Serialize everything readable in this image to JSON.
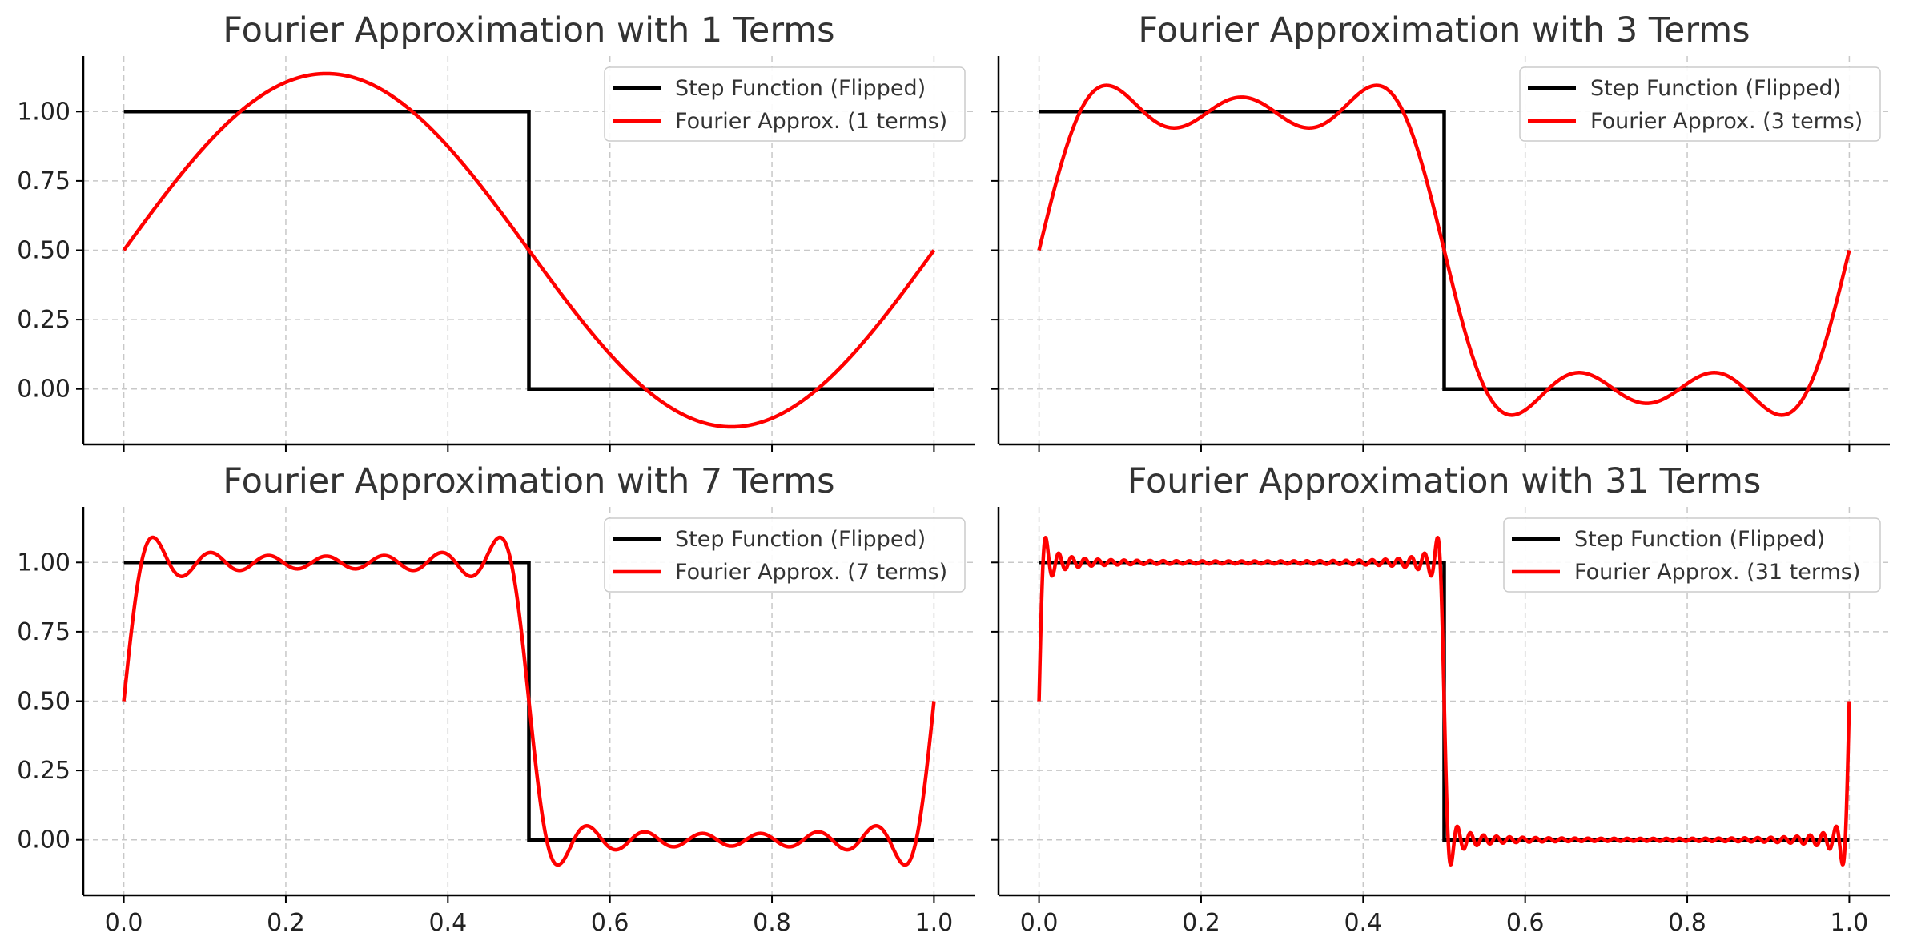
{
  "colors": {
    "step": "#000000",
    "fourier": "#ff0000",
    "grid": "#c8c8c8",
    "title": "#333333"
  },
  "chart_data": [
    {
      "type": "line",
      "title": "Fourier Approximation with 1 Terms",
      "terms": 1,
      "xlim": [
        -0.05,
        1.05
      ],
      "ylim": [
        -0.2,
        1.2
      ],
      "xticks": [
        0.0,
        0.2,
        0.4,
        0.6,
        0.8,
        1.0
      ],
      "xtick_labels": [],
      "yticks": [
        0.0,
        0.25,
        0.5,
        0.75,
        1.0
      ],
      "ytick_labels": [
        "0.00",
        "0.25",
        "0.50",
        "0.75",
        "1.00"
      ],
      "grid": true,
      "legend_position": "top-right",
      "series": [
        {
          "name": "Step Function (Flipped)",
          "color": "#000000",
          "x": [
            0.0,
            0.5,
            0.5,
            1.0
          ],
          "y": [
            1.0,
            1.0,
            0.0,
            0.0
          ]
        },
        {
          "name": "Fourier Approx. (1 terms)",
          "color": "#ff0000",
          "function": "0.5 + (2/pi) * sum_{k=1..N} sin(2*pi*(2k-1)*x)/(2k-1)",
          "x_range": [
            0.0,
            1.0
          ],
          "peak": 1.137,
          "trough": -0.137
        }
      ]
    },
    {
      "type": "line",
      "title": "Fourier Approximation with 3 Terms",
      "terms": 3,
      "xlim": [
        -0.05,
        1.05
      ],
      "ylim": [
        -0.2,
        1.2
      ],
      "xticks": [
        0.0,
        0.2,
        0.4,
        0.6,
        0.8,
        1.0
      ],
      "xtick_labels": [],
      "yticks": [
        0.0,
        0.25,
        0.5,
        0.75,
        1.0
      ],
      "ytick_labels": [],
      "grid": true,
      "legend_position": "top-right",
      "series": [
        {
          "name": "Step Function (Flipped)",
          "color": "#000000",
          "x": [
            0.0,
            0.5,
            0.5,
            1.0
          ],
          "y": [
            1.0,
            1.0,
            0.0,
            0.0
          ]
        },
        {
          "name": "Fourier Approx. (3 terms)",
          "color": "#ff0000",
          "function": "0.5 + (2/pi) * sum_{k=1..N} sin(2*pi*(2k-1)*x)/(2k-1)",
          "x_range": [
            0.0,
            1.0
          ],
          "peak": 1.1,
          "trough": -0.1
        }
      ]
    },
    {
      "type": "line",
      "title": "Fourier Approximation with 7 Terms",
      "terms": 7,
      "xlim": [
        -0.05,
        1.05
      ],
      "ylim": [
        -0.2,
        1.2
      ],
      "xticks": [
        0.0,
        0.2,
        0.4,
        0.6,
        0.8,
        1.0
      ],
      "xtick_labels": [
        "0.0",
        "0.2",
        "0.4",
        "0.6",
        "0.8",
        "1.0"
      ],
      "yticks": [
        0.0,
        0.25,
        0.5,
        0.75,
        1.0
      ],
      "ytick_labels": [
        "0.00",
        "0.25",
        "0.50",
        "0.75",
        "1.00"
      ],
      "grid": true,
      "legend_position": "top-right",
      "series": [
        {
          "name": "Step Function (Flipped)",
          "color": "#000000",
          "x": [
            0.0,
            0.5,
            0.5,
            1.0
          ],
          "y": [
            1.0,
            1.0,
            0.0,
            0.0
          ]
        },
        {
          "name": "Fourier Approx. (7 terms)",
          "color": "#ff0000",
          "function": "0.5 + (2/pi) * sum_{k=1..N} sin(2*pi*(2k-1)*x)/(2k-1)",
          "x_range": [
            0.0,
            1.0
          ],
          "peak": 1.09,
          "trough": -0.09
        }
      ]
    },
    {
      "type": "line",
      "title": "Fourier Approximation with 31 Terms",
      "terms": 31,
      "xlim": [
        -0.05,
        1.05
      ],
      "ylim": [
        -0.2,
        1.2
      ],
      "xticks": [
        0.0,
        0.2,
        0.4,
        0.6,
        0.8,
        1.0
      ],
      "xtick_labels": [
        "0.0",
        "0.2",
        "0.4",
        "0.6",
        "0.8",
        "1.0"
      ],
      "yticks": [
        0.0,
        0.25,
        0.5,
        0.75,
        1.0
      ],
      "ytick_labels": [],
      "grid": true,
      "legend_position": "top-right",
      "series": [
        {
          "name": "Step Function (Flipped)",
          "color": "#000000",
          "x": [
            0.0,
            0.5,
            0.5,
            1.0
          ],
          "y": [
            1.0,
            1.0,
            0.0,
            0.0
          ]
        },
        {
          "name": "Fourier Approx. (31 terms)",
          "color": "#ff0000",
          "function": "0.5 + (2/pi) * sum_{k=1..N} sin(2*pi*(2k-1)*x)/(2k-1)",
          "x_range": [
            0.0,
            1.0
          ],
          "peak": 1.09,
          "trough": -0.09
        }
      ]
    }
  ]
}
